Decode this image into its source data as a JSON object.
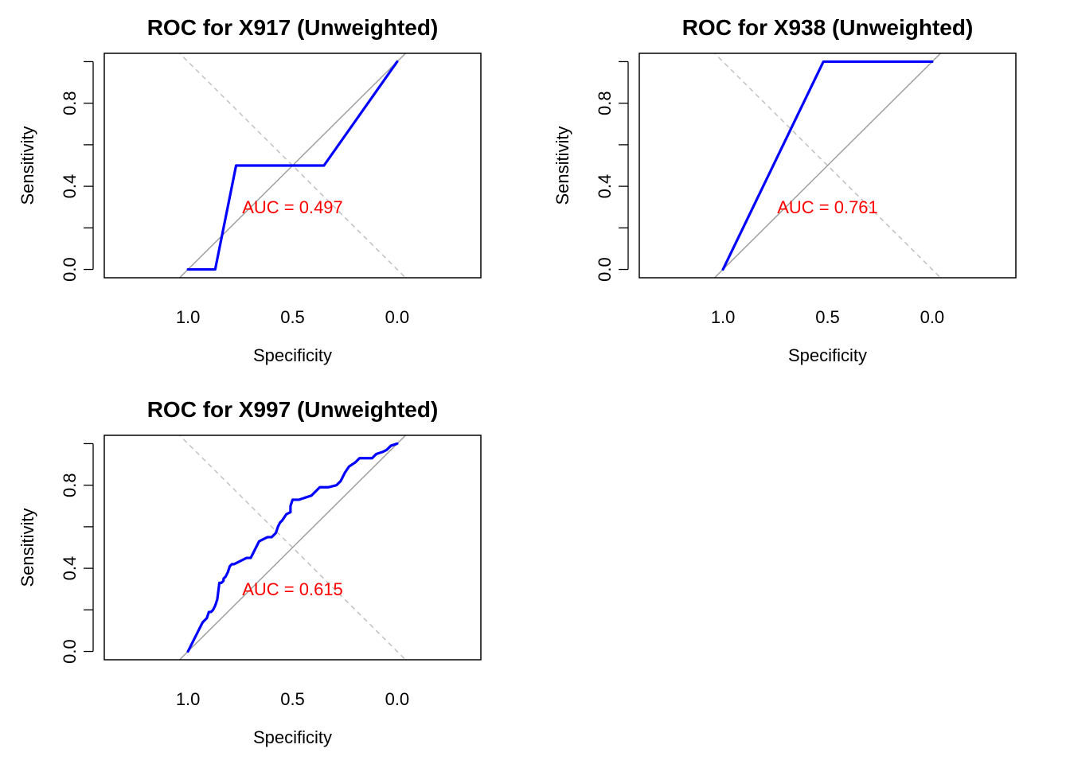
{
  "chart_data": [
    {
      "type": "line",
      "title": "ROC for X917 (Unweighted)",
      "xlabel": "Specificity",
      "ylabel": "Sensitivity",
      "x_reversed": true,
      "xlim": [
        1.4,
        -0.4
      ],
      "ylim": [
        -0.04,
        1.04
      ],
      "x_ticks": [
        1.0,
        0.5,
        0.0
      ],
      "x_tick_labels": [
        "1.0",
        "0.5",
        "0.0"
      ],
      "y_ticks": [
        0.0,
        0.2,
        0.4,
        0.6,
        0.8,
        1.0
      ],
      "y_tick_labels": [
        "0.0",
        "",
        "0.4",
        "",
        "0.8",
        ""
      ],
      "series": [
        {
          "specificity": [
            1.0,
            0.87,
            0.77,
            0.35,
            0.0
          ],
          "sensitivity": [
            0.0,
            0.0,
            0.5,
            0.5,
            1.0
          ],
          "color": "#0000ff"
        }
      ],
      "auc_text": "AUC = 0.497",
      "auc_position": {
        "specificity": 0.5,
        "sensitivity": 0.3
      },
      "reference_line_color": "#a0a0a0",
      "crossing_line_color": "#c0c0c0",
      "auc_color": "#ff0000"
    },
    {
      "type": "line",
      "title": "ROC for X938 (Unweighted)",
      "xlabel": "Specificity",
      "ylabel": "Sensitivity",
      "x_reversed": true,
      "xlim": [
        1.4,
        -0.4
      ],
      "ylim": [
        -0.04,
        1.04
      ],
      "x_ticks": [
        1.0,
        0.5,
        0.0
      ],
      "x_tick_labels": [
        "1.0",
        "0.5",
        "0.0"
      ],
      "y_ticks": [
        0.0,
        0.2,
        0.4,
        0.6,
        0.8,
        1.0
      ],
      "y_tick_labels": [
        "0.0",
        "",
        "0.4",
        "",
        "0.8",
        ""
      ],
      "series": [
        {
          "specificity": [
            1.0,
            0.52,
            0.0
          ],
          "sensitivity": [
            0.0,
            1.0,
            1.0
          ],
          "color": "#0000ff"
        }
      ],
      "auc_text": "AUC = 0.761",
      "auc_position": {
        "specificity": 0.5,
        "sensitivity": 0.3
      },
      "reference_line_color": "#a0a0a0",
      "crossing_line_color": "#c0c0c0",
      "auc_color": "#ff0000"
    },
    {
      "type": "line",
      "title": "ROC for X997 (Unweighted)",
      "xlabel": "Specificity",
      "ylabel": "Sensitivity",
      "x_reversed": true,
      "xlim": [
        1.4,
        -0.4
      ],
      "ylim": [
        -0.04,
        1.04
      ],
      "x_ticks": [
        1.0,
        0.5,
        0.0
      ],
      "x_tick_labels": [
        "1.0",
        "0.5",
        "0.0"
      ],
      "y_ticks": [
        0.0,
        0.2,
        0.4,
        0.6,
        0.8,
        1.0
      ],
      "y_tick_labels": [
        "0.0",
        "",
        "0.4",
        "",
        "0.8",
        ""
      ],
      "series": [
        {
          "specificity": [
            1.0,
            0.99,
            0.98,
            0.97,
            0.96,
            0.95,
            0.94,
            0.93,
            0.92,
            0.91,
            0.9,
            0.89,
            0.88,
            0.87,
            0.86,
            0.85,
            0.84,
            0.83,
            0.83,
            0.82,
            0.81,
            0.8,
            0.79,
            0.78,
            0.76,
            0.74,
            0.72,
            0.7,
            0.68,
            0.66,
            0.64,
            0.62,
            0.6,
            0.58,
            0.57,
            0.56,
            0.55,
            0.53,
            0.51,
            0.51,
            0.5,
            0.47,
            0.44,
            0.41,
            0.39,
            0.37,
            0.33,
            0.29,
            0.27,
            0.25,
            0.23,
            0.2,
            0.18,
            0.15,
            0.12,
            0.1,
            0.07,
            0.05,
            0.03,
            0.0
          ],
          "sensitivity": [
            0.0,
            0.02,
            0.04,
            0.06,
            0.08,
            0.1,
            0.12,
            0.14,
            0.15,
            0.16,
            0.19,
            0.19,
            0.2,
            0.22,
            0.25,
            0.33,
            0.33,
            0.34,
            0.35,
            0.36,
            0.38,
            0.41,
            0.42,
            0.42,
            0.43,
            0.44,
            0.45,
            0.45,
            0.49,
            0.53,
            0.54,
            0.55,
            0.55,
            0.57,
            0.6,
            0.62,
            0.63,
            0.66,
            0.67,
            0.7,
            0.73,
            0.73,
            0.74,
            0.75,
            0.77,
            0.79,
            0.79,
            0.8,
            0.82,
            0.86,
            0.89,
            0.91,
            0.93,
            0.93,
            0.93,
            0.95,
            0.96,
            0.97,
            0.99,
            1.0
          ],
          "color": "#0000ff"
        }
      ],
      "auc_text": "AUC = 0.615",
      "auc_position": {
        "specificity": 0.5,
        "sensitivity": 0.3
      },
      "reference_line_color": "#a0a0a0",
      "crossing_line_color": "#c0c0c0",
      "auc_color": "#ff0000"
    }
  ]
}
